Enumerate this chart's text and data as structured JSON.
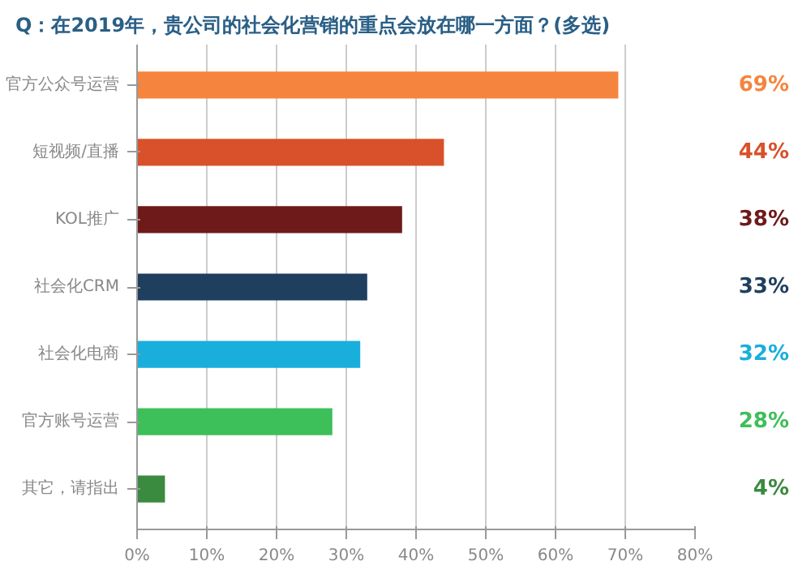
{
  "chart_data": {
    "type": "bar",
    "orientation": "horizontal",
    "title": "Q：在2019年，贵公司的社会化营销的重点会放在哪一方面？(多选)",
    "categories": [
      "官方公众号运营",
      "短视频/直播",
      "KOL推广",
      "社会化CRM",
      "社会化电商",
      "官方账号运营",
      "其它，请指出"
    ],
    "values": [
      69,
      44,
      38,
      33,
      32,
      28,
      4
    ],
    "colors": [
      "#f5843f",
      "#d9512b",
      "#6e1a1a",
      "#1f3f5f",
      "#1aaedc",
      "#3dbf5a",
      "#3a8a3f"
    ],
    "value_labels": [
      "69%",
      "44%",
      "38%",
      "33%",
      "32%",
      "28%",
      "4%"
    ],
    "xlim": [
      0,
      80
    ],
    "xticks": [
      {
        "value": 0,
        "label": "0%"
      },
      {
        "value": 10,
        "label": "10%"
      },
      {
        "value": 20,
        "label": "20%"
      },
      {
        "value": 30,
        "label": "30%"
      },
      {
        "value": 40,
        "label": "40%"
      },
      {
        "value": 50,
        "label": "50%"
      },
      {
        "value": 60,
        "label": "60%"
      },
      {
        "value": 70,
        "label": "70%"
      },
      {
        "value": 80,
        "label": "80%"
      }
    ],
    "grid": "x"
  }
}
